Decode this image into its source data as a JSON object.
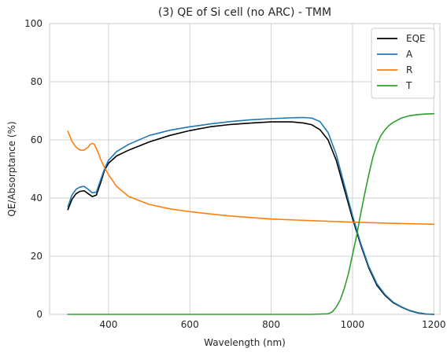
{
  "chart_data": {
    "type": "line",
    "title": "(3) QE of Si cell (no ARC) - TMM",
    "xlabel": "Wavelength (nm)",
    "ylabel": "QE/Absorptance (%)",
    "xlim": [
      255,
      1215
    ],
    "ylim": [
      0,
      100
    ],
    "xticks": [
      400,
      600,
      800,
      1000,
      1200
    ],
    "yticks": [
      0,
      20,
      40,
      60,
      80,
      100
    ],
    "grid": true,
    "legend_position": "top-right",
    "series": [
      {
        "name": "EQE",
        "color": "#000000",
        "x": [
          300,
          310,
          320,
          330,
          340,
          350,
          360,
          370,
          380,
          390,
          400,
          420,
          450,
          500,
          550,
          600,
          650,
          700,
          750,
          800,
          850,
          880,
          900,
          920,
          940,
          960,
          980,
          1000,
          1020,
          1040,
          1060,
          1080,
          1100,
          1120,
          1140,
          1160,
          1180,
          1200
        ],
        "y": [
          36,
          39.5,
          41.5,
          42.3,
          42.5,
          41.5,
          40.5,
          41,
          45,
          49.5,
          52,
          54.5,
          56.5,
          59.3,
          61.5,
          63.2,
          64.5,
          65.3,
          65.8,
          66.2,
          66.2,
          65.8,
          65.2,
          63.5,
          60,
          53,
          43,
          33,
          24,
          16,
          10,
          6.5,
          4,
          2.5,
          1.3,
          0.5,
          0.1,
          0
        ]
      },
      {
        "name": "A",
        "color": "#1f77b4",
        "x": [
          300,
          310,
          320,
          330,
          340,
          350,
          360,
          370,
          380,
          390,
          400,
          420,
          450,
          500,
          550,
          600,
          650,
          700,
          750,
          800,
          850,
          880,
          900,
          920,
          940,
          960,
          980,
          1000,
          1020,
          1040,
          1060,
          1080,
          1100,
          1120,
          1140,
          1160,
          1180,
          1200
        ],
        "y": [
          37,
          41,
          43,
          43.8,
          44,
          43,
          41.8,
          42,
          46,
          50,
          53,
          56,
          58.5,
          61.5,
          63.3,
          64.5,
          65.5,
          66.3,
          66.9,
          67.3,
          67.6,
          67.7,
          67.5,
          66.3,
          62.5,
          55,
          44.5,
          34,
          24.5,
          16.5,
          10.5,
          6.8,
          4.2,
          2.6,
          1.4,
          0.6,
          0.15,
          0
        ]
      },
      {
        "name": "R",
        "color": "#ff7f0e",
        "x": [
          300,
          310,
          320,
          330,
          340,
          350,
          355,
          360,
          365,
          370,
          375,
          380,
          390,
          400,
          420,
          450,
          500,
          550,
          600,
          700,
          800,
          900,
          1000,
          1100,
          1200
        ],
        "y": [
          63,
          59.5,
          57.5,
          56.5,
          56.5,
          57.5,
          58.5,
          58.8,
          58.5,
          57,
          55.5,
          53.5,
          50.5,
          48,
          44,
          40.5,
          37.8,
          36.3,
          35.3,
          33.8,
          32.8,
          32.2,
          31.7,
          31.3,
          31
        ]
      },
      {
        "name": "T",
        "color": "#2ca02c",
        "x": [
          300,
          900,
          940,
          950,
          960,
          970,
          980,
          990,
          1000,
          1010,
          1020,
          1030,
          1040,
          1050,
          1060,
          1070,
          1080,
          1090,
          1100,
          1120,
          1140,
          1160,
          1180,
          1200
        ],
        "y": [
          0,
          0,
          0.2,
          0.8,
          2.5,
          5,
          9,
          14,
          20.5,
          27,
          34.5,
          41.5,
          48,
          54,
          58.5,
          61.5,
          63.5,
          65,
          66,
          67.5,
          68.3,
          68.7,
          68.9,
          69
        ]
      }
    ]
  }
}
